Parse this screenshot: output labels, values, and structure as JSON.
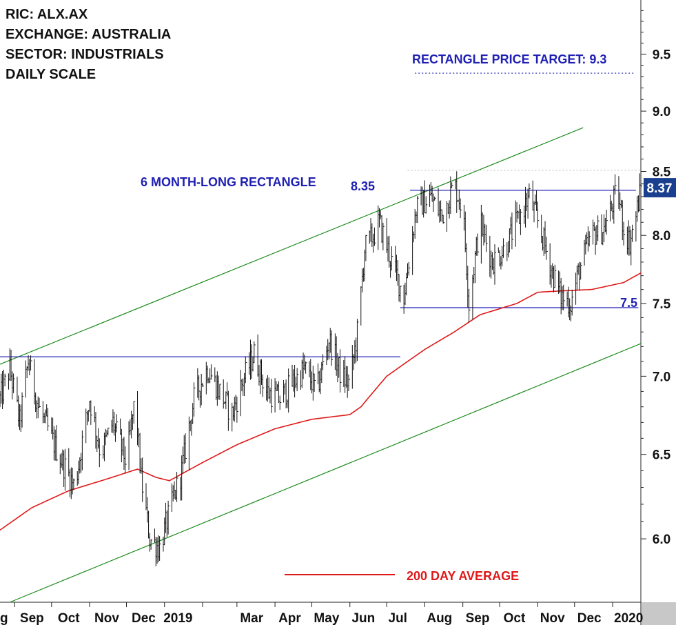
{
  "info": {
    "ric": "RIC: ALX.AX",
    "exchange": "EXCHANGE: AUSTRALIA",
    "sector": "SECTOR: INDUSTRIALS",
    "scale": "DAILY SCALE"
  },
  "chart_data": {
    "type": "line",
    "scale": "log",
    "ylim": [
      5.65,
      10.0
    ],
    "y_ticks": [
      "6.0",
      "6.5",
      "7.0",
      "7.5",
      "8.0",
      "8.5",
      "9.0",
      "9.5"
    ],
    "x_tick_labels": [
      "g",
      "Sep",
      "Oct",
      "Nov",
      "Dec",
      "2019",
      "Mar",
      "Apr",
      "May",
      "Jun",
      "Jul",
      "Aug",
      "Sep",
      "Oct",
      "Nov",
      "Dec",
      "2020"
    ],
    "x_range": [
      "2018-08-20",
      "2020-01-24"
    ],
    "last_price": {
      "value": 8.37,
      "label": "8.37",
      "color": "#1a3f8f"
    },
    "annotations": {
      "price_target": "RECTANGLE PRICE TARGET: 9.3",
      "rectangle": "6 MONTH-LONG RECTANGLE",
      "upper_level": "8.35",
      "lower_level": "7.5",
      "ma_legend": "200 DAY AVERAGE"
    },
    "horizontal_lines": [
      {
        "name": "resistance",
        "value": 8.35,
        "from": "2019-07-20",
        "to": "2020-01-20",
        "color": "#1f1fb4"
      },
      {
        "name": "support",
        "value": 7.47,
        "from": "2019-07-12",
        "to": "2020-01-22",
        "color": "#1f1fb4"
      },
      {
        "name": "prior-resistance",
        "value": 7.13,
        "from": "2018-08-20",
        "to": "2019-07-12",
        "color": "#1f1fb4"
      },
      {
        "name": "price-target",
        "value": 9.33,
        "from": "2019-07-24",
        "to": "2020-01-18",
        "color": "#1f1fb4",
        "dashed": true
      },
      {
        "name": "target-level-gray",
        "value": 8.51,
        "from": "2019-07-18",
        "to": "2020-01-24",
        "color": "#bbbbbb",
        "dashed": true
      }
    ],
    "trend_channel": {
      "color": "#1e8c1e",
      "upper": [
        [
          "2018-08-20",
          7.08
        ],
        [
          "2019-12-08",
          8.86
        ]
      ],
      "lower": [
        [
          "2018-08-28",
          5.65
        ],
        [
          "2020-01-24",
          7.22
        ]
      ]
    },
    "series": [
      {
        "name": "200 DAY AVERAGE",
        "color": "#e01818",
        "x": [
          "2018-08-20",
          "2018-09-15",
          "2018-10-15",
          "2018-11-15",
          "2018-12-10",
          "2018-12-25",
          "2019-01-05",
          "2019-02-01",
          "2019-03-01",
          "2019-04-01",
          "2019-05-01",
          "2019-06-01",
          "2019-06-10",
          "2019-07-01",
          "2019-08-01",
          "2019-08-25",
          "2019-09-15",
          "2019-10-15",
          "2019-11-01",
          "2019-11-20",
          "2019-12-15",
          "2020-01-10",
          "2020-01-24"
        ],
        "values": [
          6.05,
          6.18,
          6.28,
          6.35,
          6.41,
          6.36,
          6.34,
          6.45,
          6.56,
          6.66,
          6.72,
          6.75,
          6.8,
          7.0,
          7.18,
          7.3,
          7.42,
          7.5,
          7.58,
          7.59,
          7.6,
          7.65,
          7.72
        ]
      },
      {
        "name": "ALX.AX",
        "color": "#111111",
        "x": [
          "2018-08-20",
          "2018-08-28",
          "2018-09-05",
          "2018-09-12",
          "2018-09-20",
          "2018-10-01",
          "2018-10-10",
          "2018-10-20",
          "2018-11-01",
          "2018-11-10",
          "2018-11-20",
          "2018-12-01",
          "2018-12-08",
          "2018-12-13",
          "2018-12-20",
          "2018-12-28",
          "2019-01-05",
          "2019-01-15",
          "2019-01-25",
          "2019-02-05",
          "2019-02-15",
          "2019-02-25",
          "2019-03-05",
          "2019-03-15",
          "2019-03-25",
          "2019-04-05",
          "2019-04-15",
          "2019-04-25",
          "2019-05-05",
          "2019-05-15",
          "2019-05-25",
          "2019-06-01",
          "2019-06-08",
          "2019-06-13",
          "2019-06-20",
          "2019-06-25",
          "2019-07-05",
          "2019-07-15",
          "2019-07-25",
          "2019-08-05",
          "2019-08-15",
          "2019-08-25",
          "2019-09-01",
          "2019-09-06",
          "2019-09-15",
          "2019-09-25",
          "2019-10-05",
          "2019-10-15",
          "2019-10-25",
          "2019-11-03",
          "2019-11-12",
          "2019-11-20",
          "2019-11-28",
          "2019-12-05",
          "2019-12-15",
          "2019-12-25",
          "2020-01-05",
          "2020-01-10",
          "2020-01-15",
          "2020-01-20",
          "2020-01-24"
        ],
        "values": [
          6.85,
          7.05,
          6.7,
          7.1,
          6.8,
          6.6,
          6.45,
          6.3,
          6.85,
          6.5,
          6.7,
          6.45,
          6.85,
          6.35,
          6.0,
          5.95,
          6.15,
          6.4,
          6.85,
          7.05,
          6.9,
          6.75,
          6.95,
          7.15,
          6.9,
          6.85,
          6.95,
          7.05,
          6.9,
          7.25,
          7.0,
          6.95,
          7.35,
          7.9,
          8.0,
          8.1,
          7.8,
          7.55,
          8.2,
          8.3,
          8.15,
          8.4,
          8.2,
          7.5,
          8.1,
          7.8,
          7.9,
          8.1,
          8.3,
          8.05,
          7.75,
          7.55,
          7.5,
          7.75,
          8.0,
          8.05,
          8.35,
          8.05,
          7.95,
          8.15,
          8.37
        ]
      }
    ]
  }
}
